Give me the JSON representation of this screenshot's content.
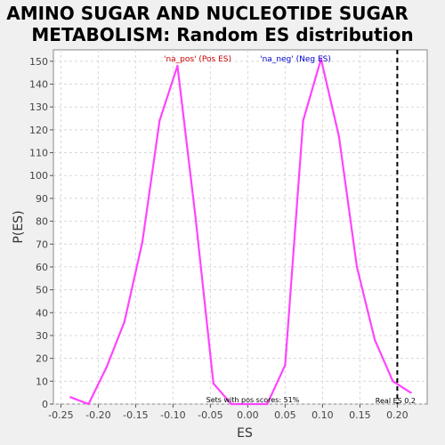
{
  "chart_data": {
    "type": "line",
    "title_line1": "AMINO SUGAR AND NUCLEOTIDE SUGAR",
    "title_line2": "METABOLISM: Random ES distribution",
    "xlabel": "ES",
    "ylabel": "P(ES)",
    "xlim": [
      -0.26,
      0.24
    ],
    "ylim": [
      0,
      155
    ],
    "x_ticks": [
      -0.25,
      -0.2,
      -0.15,
      -0.1,
      -0.05,
      0.0,
      0.05,
      0.1,
      0.15,
      0.2
    ],
    "x_tick_labels": [
      "-0.25",
      "-0.20",
      "-0.15",
      "-0.10",
      "-0.05",
      "0.00",
      "0.05",
      "0.10",
      "0.15",
      "0.20"
    ],
    "y_ticks": [
      0,
      10,
      20,
      30,
      40,
      50,
      60,
      70,
      80,
      90,
      100,
      110,
      120,
      130,
      140,
      150
    ],
    "grid": true,
    "line_color": "#ff44ff",
    "series": [
      {
        "values": [
          {
            "x": -0.237,
            "y": 3
          },
          {
            "x": -0.213,
            "y": 0
          },
          {
            "x": -0.189,
            "y": 16
          },
          {
            "x": -0.165,
            "y": 36
          },
          {
            "x": -0.141,
            "y": 71
          },
          {
            "x": -0.118,
            "y": 124
          },
          {
            "x": -0.094,
            "y": 148
          },
          {
            "x": -0.07,
            "y": 82
          },
          {
            "x": -0.046,
            "y": 9
          },
          {
            "x": -0.022,
            "y": 0
          },
          {
            "x": 0.026,
            "y": 0
          },
          {
            "x": 0.05,
            "y": 17
          },
          {
            "x": 0.074,
            "y": 124
          },
          {
            "x": 0.098,
            "y": 151
          },
          {
            "x": 0.122,
            "y": 117
          },
          {
            "x": 0.146,
            "y": 60
          },
          {
            "x": 0.17,
            "y": 28
          },
          {
            "x": 0.194,
            "y": 10
          },
          {
            "x": 0.218,
            "y": 5
          }
        ]
      }
    ],
    "legend": [
      {
        "label": "'na_pos' (Pos ES)",
        "color": "#cc0000"
      },
      {
        "label": "'na_neg' (Neg ES)",
        "color": "#0000cc"
      }
    ],
    "real_es": {
      "x": 0.2,
      "label": "Real ES 0.2"
    },
    "annotation": "Sets with pos scores: 51%"
  }
}
